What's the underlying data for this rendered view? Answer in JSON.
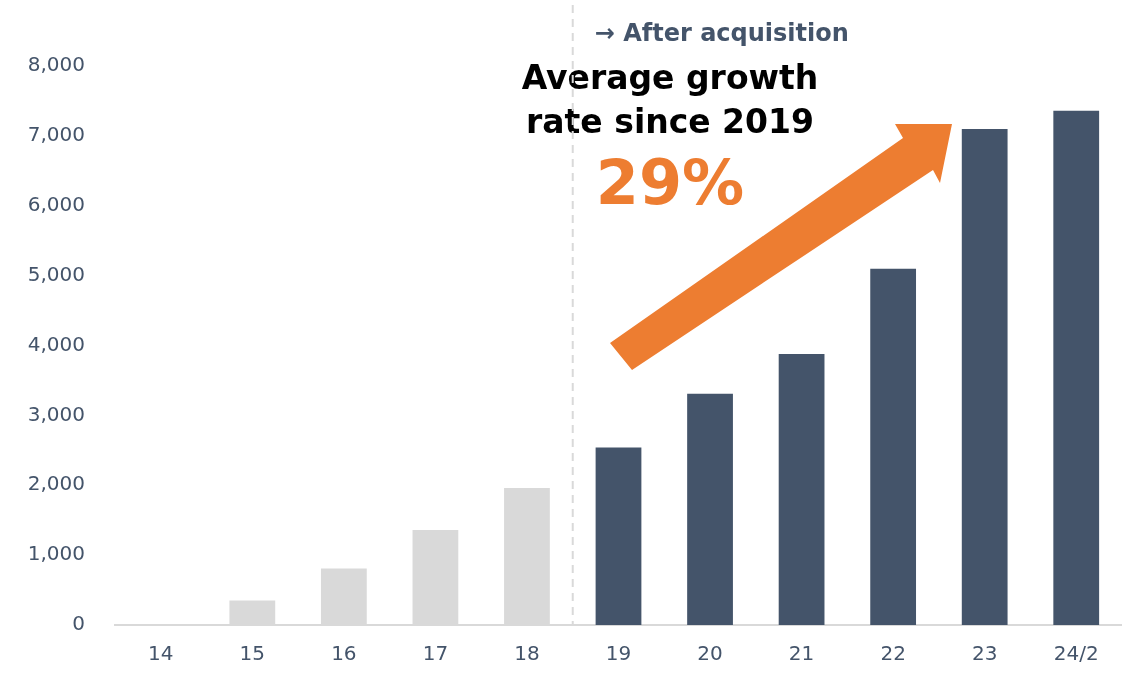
{
  "chart_data": {
    "type": "bar",
    "categories": [
      "14",
      "15",
      "16",
      "17",
      "18",
      "19",
      "20",
      "21",
      "22",
      "23",
      "24/2"
    ],
    "values": [
      0,
      350,
      810,
      1360,
      1960,
      2540,
      3310,
      3880,
      5100,
      7100,
      7360
    ],
    "colors": [
      "#d9d9d9",
      "#d9d9d9",
      "#d9d9d9",
      "#d9d9d9",
      "#d9d9d9",
      "#44546a",
      "#44546a",
      "#44546a",
      "#44546a",
      "#44546a",
      "#44546a"
    ],
    "ylim": [
      0,
      8000
    ],
    "yticks": [
      0,
      {
        "value": 1000,
        "label": "1,000"
      },
      {
        "value": 2000,
        "label": "2,000"
      },
      {
        "value": 3000,
        "label": "3,000"
      },
      {
        "value": 4000,
        "label": "4,000"
      },
      {
        "value": 5000,
        "label": "5,000"
      },
      {
        "value": 6000,
        "label": "6,000"
      },
      {
        "value": 7000,
        "label": "7,000"
      },
      {
        "value": 8000,
        "label": "8,000"
      }
    ],
    "grid": false,
    "legend": false,
    "annotations": [
      "Average growth rate since 2019",
      "29%",
      "→ After acquisition"
    ]
  }
}
